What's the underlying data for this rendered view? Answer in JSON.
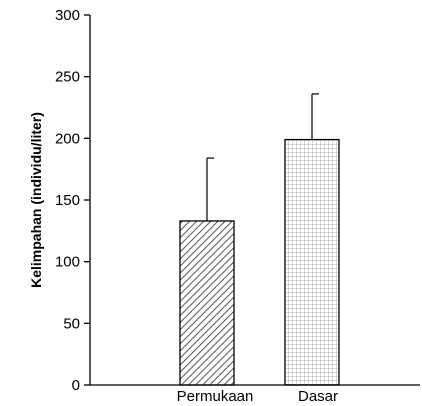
{
  "chart_data": {
    "type": "bar",
    "title": "",
    "xlabel": "",
    "ylabel": "Kelimpahan (individu/liter)",
    "categories": [
      "Permukaan",
      "Dasar"
    ],
    "values": [
      133,
      199
    ],
    "error_upper": [
      184,
      236
    ],
    "ylim": [
      0,
      300
    ],
    "yticks": [
      0,
      50,
      100,
      150,
      200,
      250,
      300
    ],
    "ytick_labels": [
      "0",
      "50",
      "100",
      "150",
      "200",
      "250",
      "300"
    ],
    "bar_patterns": [
      "diagonal-hatch",
      "grid-hatch"
    ],
    "grid": false,
    "legend": "none",
    "colors": {
      "axis": "#000000",
      "fill": "#ffffff",
      "hatch": "#555555",
      "grid_hatch": "#999999"
    }
  }
}
